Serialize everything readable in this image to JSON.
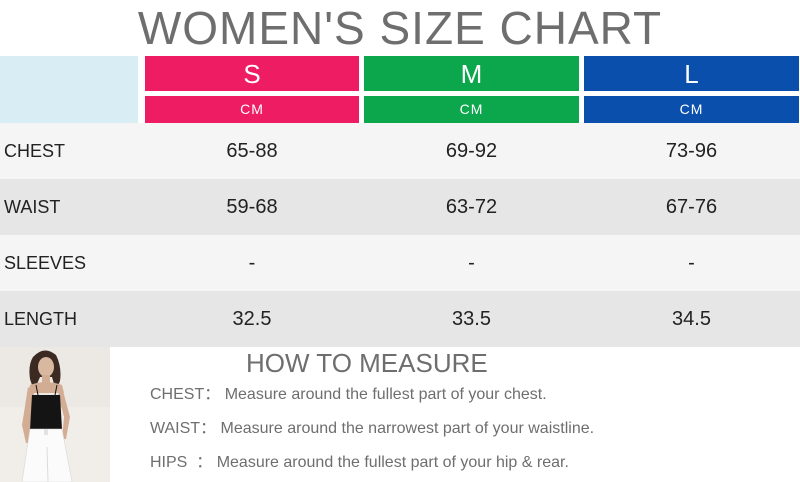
{
  "title": "WOMEN'S SIZE CHART",
  "colors": {
    "s": "#ee1c63",
    "m": "#0ca64c",
    "l": "#0b4fad",
    "corner": "#d9edf4"
  },
  "sizes": [
    {
      "label": "S",
      "unit": "CM"
    },
    {
      "label": "M",
      "unit": "CM"
    },
    {
      "label": "L",
      "unit": "CM"
    }
  ],
  "rows": [
    {
      "label": "CHEST",
      "values": [
        "65-88",
        "69-92",
        "73-96"
      ]
    },
    {
      "label": "WAIST",
      "values": [
        "59-68",
        "63-72",
        "67-76"
      ]
    },
    {
      "label": "SLEEVES",
      "values": [
        "-",
        "-",
        "-"
      ]
    },
    {
      "label": "LENGTH",
      "values": [
        "32.5",
        "33.5",
        "34.5"
      ]
    }
  ],
  "measure": {
    "title": "HOW TO MEASURE",
    "lines": [
      {
        "key": "CHEST：",
        "text": "Measure around the fullest part of your chest."
      },
      {
        "key": "WAIST：",
        "text": "Measure around the narrowest part of your waistline."
      },
      {
        "key": "HIPS  ：",
        "text": "Measure around the fullest part of your hip & rear."
      }
    ]
  }
}
